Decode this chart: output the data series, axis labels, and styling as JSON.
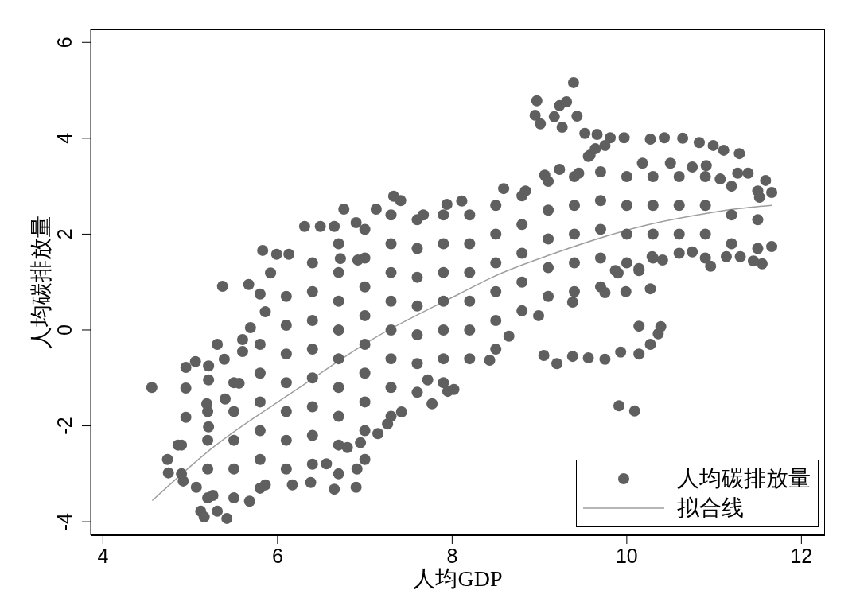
{
  "chart_data": {
    "type": "scatter",
    "xlabel": "人均GDP",
    "ylabel": "人均碳排放量",
    "xlim": [
      3.86,
      12.27
    ],
    "ylim": [
      -4.28,
      6.27
    ],
    "xticks": [
      4,
      6,
      8,
      10,
      12
    ],
    "yticks": [
      -4,
      -2,
      0,
      2,
      4,
      6
    ],
    "legend": "bottom right",
    "series": [
      {
        "name": "人均碳排放量",
        "color": "#5f5f5f",
        "marker": "circle",
        "x": [
          4.9,
          4.9,
          5.2,
          5.2,
          5.2,
          5.2,
          5.5,
          5.5,
          5.5,
          5.5,
          5.5,
          5.8,
          5.8,
          5.8,
          5.8,
          5.8,
          5.8,
          6.1,
          6.1,
          6.1,
          6.1,
          6.1,
          6.1,
          6.1,
          6.4,
          6.4,
          6.4,
          6.4,
          6.4,
          6.4,
          6.4,
          6.4,
          6.7,
          6.7,
          6.7,
          6.7,
          6.7,
          6.7,
          6.7,
          6.7,
          6.7,
          7,
          7,
          7,
          7,
          7,
          7,
          7,
          7,
          7,
          7.3,
          7.3,
          7.3,
          7.3,
          7.3,
          7.3,
          7.3,
          7.3,
          7.6,
          7.6,
          7.6,
          7.6,
          7.6,
          7.6,
          7.6,
          7.9,
          7.9,
          7.9,
          7.9,
          7.9,
          7.9,
          7.9,
          8.2,
          8.2,
          8.2,
          8.2,
          8.2,
          8.2,
          8.5,
          8.5,
          8.5,
          8.5,
          8.5,
          8.5,
          8.8,
          8.8,
          8.8,
          8.8,
          8.8,
          9.1,
          9.1,
          9.1,
          9.1,
          9.1,
          9.4,
          9.4,
          9.4,
          9.4,
          9.4,
          9.7,
          9.7,
          9.7,
          9.7,
          9.7,
          10,
          10,
          10,
          10,
          10.3,
          10.3,
          10.3,
          10.3,
          10.6,
          10.6,
          10.6,
          10.6,
          10.9,
          10.9,
          10.9,
          10.9,
          11.2,
          11.2,
          11.2,
          11.5,
          11.5,
          11.5,
          4.56,
          4.95,
          5.37,
          5.67,
          5.31,
          4.74,
          4.75,
          5.12,
          5.16,
          5.42,
          5.31,
          5.68,
          5.86,
          6.17,
          6.38,
          6.65,
          6.9,
          6.91,
          6.56,
          6.8,
          6.95,
          7.15,
          7.26,
          7.42,
          7.77,
          7.95,
          7.72,
          8.02,
          8.43,
          8.65,
          8.99,
          9.38,
          9.75,
          9.99,
          10.27,
          9.9,
          10.14,
          9.05,
          9.2,
          9.38,
          9.56,
          9.75,
          9.93,
          10.14,
          10.27,
          10.36,
          10.39,
          10.14,
          9.91,
          10.09,
          9.39,
          8.97,
          8.95,
          9.01,
          9.23,
          9.31,
          9.17,
          9.26,
          9.43,
          9.52,
          9.66,
          9.81,
          9.97,
          10.27,
          10.43,
          10.64,
          10.83,
          10.99,
          11.11,
          11.29,
          9.58,
          9.64,
          10.91,
          11.07,
          11.27,
          11.39,
          11.59,
          11.66,
          11.52,
          11.66,
          11.55,
          11.45,
          10.96,
          11.14,
          11.3,
          10.75,
          10.41,
          10.29,
          10.14,
          9.87,
          9.06,
          9.23,
          9.45,
          9.56,
          9.75,
          8.59,
          8.84,
          10.18,
          10.5,
          10.75,
          7.33,
          7.41,
          6.76,
          6.31,
          6.49,
          5.83,
          5.99,
          6.13,
          6.9,
          7.13,
          7.67,
          7.94,
          6.65,
          6.72,
          6.92,
          5.92,
          8.11,
          5.8,
          5.86,
          5.69,
          5.6,
          5.6,
          5.39,
          5.06,
          4.95,
          5.21,
          5.21,
          5.4,
          5.56,
          5.19,
          4.95,
          5.21,
          4.86,
          4.92,
          5.07,
          5.26
        ],
        "values": [
          -2.4,
          -3,
          -1.7,
          -2.3,
          -2.9,
          -3.5,
          -1.1,
          -1.7,
          -2.3,
          -2.9,
          -3.5,
          -0.3,
          -0.9,
          -1.5,
          -2.1,
          -2.7,
          -3.3,
          0.7,
          0.1,
          -0.5,
          -1.1,
          -1.7,
          -2.3,
          -2.9,
          1.4,
          0.8,
          0.2,
          -0.4,
          -1,
          -1.6,
          -2.2,
          -2.8,
          1.8,
          1.2,
          0.6,
          0,
          -0.6,
          -1.2,
          -1.8,
          -2.4,
          -3,
          2.1,
          1.5,
          0.9,
          0.3,
          -0.3,
          -0.9,
          -1.5,
          -2.1,
          -2.7,
          2.4,
          1.8,
          1.2,
          0.6,
          0,
          -0.6,
          -1.2,
          -1.8,
          2.3,
          1.7,
          1.1,
          0.5,
          -0.1,
          -0.7,
          -1.3,
          2.4,
          1.8,
          1.2,
          0.6,
          0,
          -0.6,
          -1.1,
          2.4,
          1.8,
          1.2,
          0.6,
          0,
          -0.6,
          2.6,
          2,
          1.4,
          0.8,
          0.2,
          -0.4,
          2.8,
          2.2,
          1.6,
          1,
          0.4,
          3.1,
          2.5,
          1.9,
          1.3,
          0.7,
          3.2,
          2.6,
          2,
          1.4,
          0.8,
          3.3,
          2.7,
          2.1,
          1.5,
          0.9,
          3.2,
          2.6,
          2,
          1.4,
          3.2,
          2.6,
          2,
          1.5,
          3.2,
          2.6,
          2,
          1.6,
          3.2,
          2.6,
          2,
          1.5,
          3,
          2.4,
          1.8,
          2.9,
          2.3,
          1.7,
          -1.2,
          -1.21,
          0.91,
          0.95,
          -0.3,
          -2.7,
          -2.98,
          -3.78,
          -3.9,
          -3.93,
          -3.78,
          -3.57,
          -3.23,
          -3.23,
          -3.18,
          -3.32,
          -3.28,
          -2.9,
          -2.79,
          -2.45,
          -2.35,
          -2.16,
          -1.96,
          -1.71,
          -1.54,
          -1.28,
          -1.04,
          -1.24,
          -0.63,
          -0.13,
          0.3,
          0.58,
          0.78,
          0.8,
          0.86,
          1.19,
          1.24,
          -0.53,
          -0.7,
          -0.55,
          -0.58,
          -0.61,
          -0.46,
          -0.5,
          -0.3,
          -0.08,
          0.07,
          0.08,
          -1.58,
          -1.69,
          5.16,
          4.78,
          4.48,
          4.3,
          4.68,
          4.76,
          4.45,
          4.23,
          4.46,
          4.1,
          4.08,
          4.01,
          4.01,
          3.98,
          4.01,
          4,
          3.91,
          3.85,
          3.75,
          3.68,
          3.65,
          3.78,
          3.43,
          3.15,
          3.27,
          3.27,
          3.12,
          2.87,
          2.77,
          1.74,
          1.38,
          1.44,
          1.33,
          1.53,
          1.53,
          1.63,
          1.46,
          1.53,
          1.28,
          1.24,
          3.23,
          3.35,
          3.27,
          3.62,
          3.85,
          2.95,
          2.9,
          3.48,
          3.48,
          3.4,
          2.79,
          2.7,
          2.52,
          2.16,
          2.16,
          1.66,
          1.58,
          1.58,
          2.24,
          2.52,
          2.4,
          2.62,
          2.16,
          1.49,
          1.46,
          1.19,
          2.69,
          0.75,
          0.38,
          0.05,
          -0.2,
          -0.45,
          -0.61,
          -0.66,
          -0.78,
          -0.75,
          -1.04,
          -1.44,
          -1.11,
          -1.54,
          -1.82,
          -2.02,
          -2.4,
          -3.15,
          -3.28,
          -3.45
        ]
      },
      {
        "name": "拟合线",
        "type": "line",
        "color": "#9e9e9e",
        "marker": "none",
        "x": [
          4.57,
          5.26,
          6.22,
          7.08,
          8.11,
          8.47,
          9.14,
          10.23,
          10.81,
          11.23,
          11.66
        ],
        "values": [
          -3.55,
          -2.45,
          -1.24,
          -0.2,
          0.78,
          1.11,
          1.58,
          2.19,
          2.4,
          2.52,
          2.6
        ]
      }
    ]
  }
}
